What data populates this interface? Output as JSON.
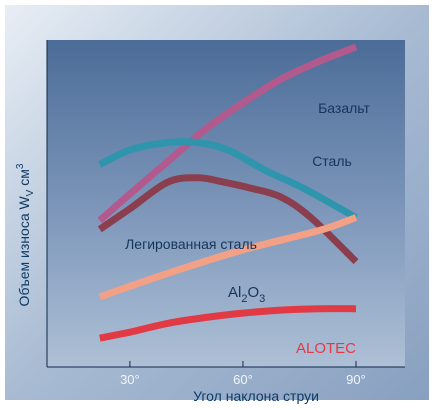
{
  "chart_data": {
    "type": "line",
    "xlabel": "Угол наклона струи",
    "ylabel_parts": {
      "main": "Объем износа W",
      "sub": "V",
      "unit": " см",
      "sup": "3"
    },
    "x_ticks": [
      {
        "value": 30,
        "label": "30°"
      },
      {
        "value": 60,
        "label": "60°"
      },
      {
        "value": 90,
        "label": "90°"
      }
    ],
    "xlim": [
      8,
      103
    ],
    "ylim": [
      0,
      100
    ],
    "grid": false,
    "series": [
      {
        "name": "Базальт",
        "color": "#b25a8e",
        "label_parts": [
          "Базальт"
        ],
        "points": [
          [
            22,
            41
          ],
          [
            30,
            50
          ],
          [
            40,
            61
          ],
          [
            50,
            72
          ],
          [
            60,
            81
          ],
          [
            70,
            89
          ],
          [
            80,
            95
          ],
          [
            90,
            100
          ]
        ]
      },
      {
        "name": "Сталь",
        "color": "#2f95ad",
        "label_parts": [
          "Сталь"
        ],
        "points": [
          [
            22,
            60
          ],
          [
            30,
            65
          ],
          [
            40,
            67.5
          ],
          [
            48,
            67.5
          ],
          [
            56,
            65
          ],
          [
            66,
            58
          ],
          [
            76,
            52
          ],
          [
            90,
            42
          ]
        ]
      },
      {
        "name": "Легированная сталь",
        "color": "#8b3f4e",
        "label_parts": [
          "Легированная сталь"
        ],
        "points": [
          [
            22,
            38
          ],
          [
            30,
            45
          ],
          [
            40,
            54
          ],
          [
            48,
            55.5
          ],
          [
            55,
            54
          ],
          [
            62,
            52
          ],
          [
            70,
            49
          ],
          [
            78,
            42
          ],
          [
            90,
            27
          ]
        ]
      },
      {
        "name": "Al2O3",
        "color": "#f2a186",
        "label_parts": [
          "Al",
          "2",
          "O",
          "3"
        ],
        "points": [
          [
            22,
            15
          ],
          [
            40,
            23
          ],
          [
            60,
            31
          ],
          [
            80,
            37.5
          ],
          [
            90,
            42
          ]
        ]
      },
      {
        "name": "ALOTEC",
        "color": "#e23a45",
        "label_parts": [
          "ALOTEC"
        ],
        "points": [
          [
            22,
            1
          ],
          [
            30,
            3
          ],
          [
            40,
            6
          ],
          [
            50,
            8
          ],
          [
            60,
            9.5
          ],
          [
            70,
            10.5
          ],
          [
            80,
            11
          ],
          [
            90,
            11
          ]
        ]
      }
    ]
  }
}
